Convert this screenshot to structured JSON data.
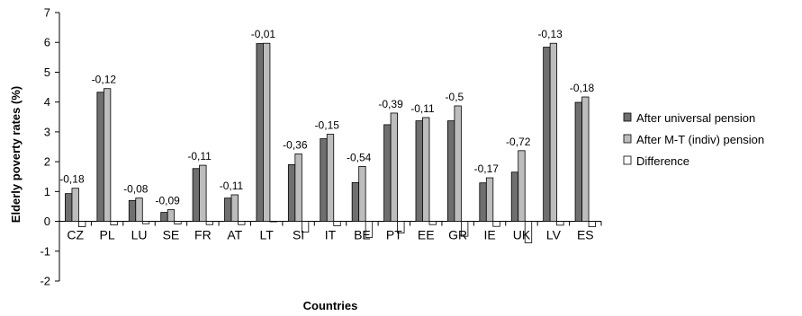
{
  "chart_data": {
    "type": "bar",
    "title": "",
    "xlabel": "Countries",
    "ylabel": "Elderly poverty rates (%)",
    "ylim": [
      -2,
      7
    ],
    "yticks": [
      -2,
      -1,
      0,
      1,
      2,
      3,
      4,
      5,
      6,
      7
    ],
    "categories": [
      "CZ",
      "PL",
      "LU",
      "SE",
      "FR",
      "AT",
      "LT",
      "SI",
      "IT",
      "BE",
      "PT",
      "EE",
      "GR",
      "IE",
      "UK",
      "LV",
      "ES"
    ],
    "series": [
      {
        "name": "After universal pension",
        "color": "#6f6f6f",
        "values": [
          0.93,
          4.33,
          0.7,
          0.3,
          1.77,
          0.78,
          5.96,
          1.9,
          2.77,
          1.3,
          3.24,
          3.37,
          3.37,
          1.29,
          1.65,
          5.84,
          3.99
        ]
      },
      {
        "name": "After M-T (indiv) pension",
        "color": "#bdbdbd",
        "values": [
          1.11,
          4.45,
          0.78,
          0.39,
          1.88,
          0.89,
          5.97,
          2.26,
          2.92,
          1.84,
          3.63,
          3.48,
          3.87,
          1.46,
          2.37,
          5.97,
          4.17
        ]
      },
      {
        "name": "Difference",
        "color": "#ffffff",
        "values": [
          -0.18,
          -0.12,
          -0.08,
          -0.09,
          -0.11,
          -0.11,
          -0.01,
          -0.36,
          -0.15,
          -0.54,
          -0.39,
          -0.11,
          -0.5,
          -0.17,
          -0.72,
          -0.13,
          -0.18
        ]
      }
    ],
    "data_labels": [
      "-0,18",
      "-0,12",
      "-0,08",
      "-0,09",
      "-0,11",
      "-0,11",
      "-0,01",
      "-0,36",
      "-0,15",
      "-0,54",
      "-0,39",
      "-0,11",
      "-0,5",
      "-0,17",
      "-0,72",
      "-0,13",
      "-0,18"
    ],
    "legend_position": "right",
    "grid": false
  }
}
